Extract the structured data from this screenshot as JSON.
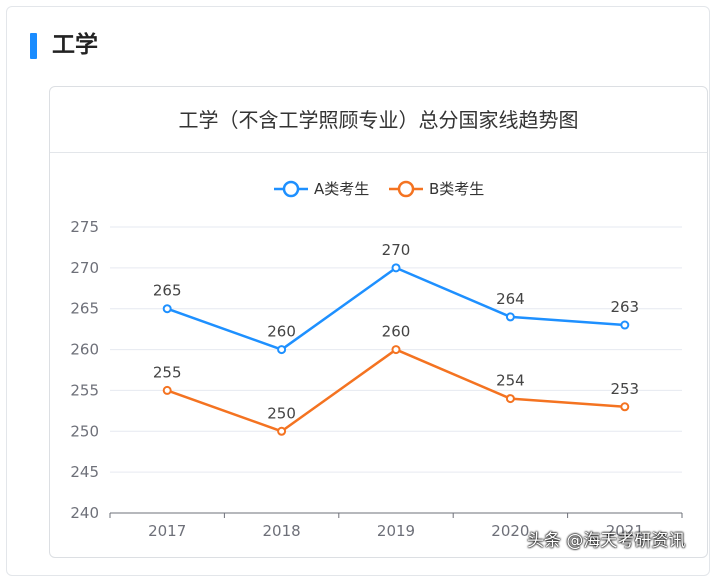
{
  "section": {
    "title": "工学"
  },
  "watermark": "头条 @海天考研资讯",
  "colors": {
    "accent": "#1a8cff",
    "series_a": "#1e90ff",
    "series_b": "#f47321"
  },
  "chart_data": {
    "type": "line",
    "title": "工学（不含工学照顾专业）总分国家线趋势图",
    "xlabel": "",
    "ylabel": "",
    "categories": [
      "2017",
      "2018",
      "2019",
      "2020",
      "2021"
    ],
    "ylim": [
      240,
      275
    ],
    "yticks": [
      "240",
      "245",
      "250",
      "255",
      "260",
      "265",
      "270",
      "275"
    ],
    "grid": true,
    "legend": "top-center",
    "series": [
      {
        "name": "A类考生",
        "values": [
          265,
          260,
          270,
          264,
          263
        ],
        "color": "#1e90ff"
      },
      {
        "name": "B类考生",
        "values": [
          255,
          250,
          260,
          254,
          253
        ],
        "color": "#f47321"
      }
    ]
  }
}
